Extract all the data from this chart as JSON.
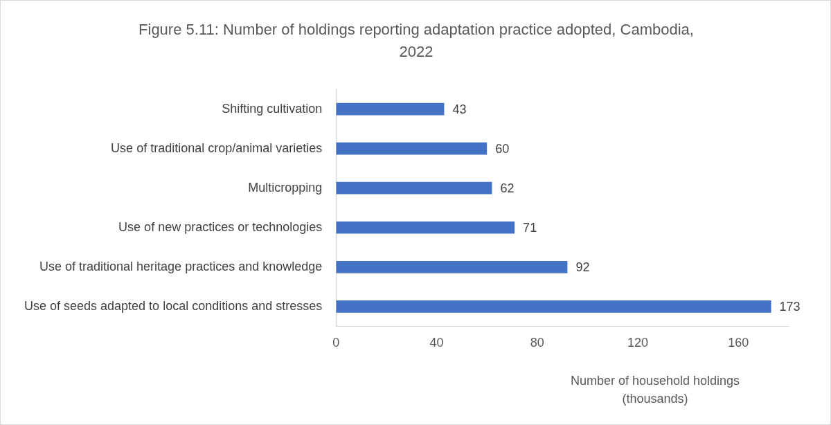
{
  "chart_data": {
    "type": "bar",
    "orientation": "horizontal",
    "title": "Figure 5.11: Number of holdings reporting adaptation practice adopted, Cambodia, 2022",
    "xlabel": "Number of household holdings (thousands)",
    "categories": [
      "Shifting cultivation",
      "Use of traditional crop/animal varieties",
      "Multicropping",
      "Use of new practices or technologies",
      "Use of traditional heritage practices and knowledge",
      "Use of seeds adapted to local conditions and stresses"
    ],
    "values": [
      43,
      60,
      62,
      71,
      92,
      173
    ],
    "color": "#4472c4",
    "xlim": [
      0,
      180
    ],
    "xticks": [
      0,
      40,
      80,
      120,
      160
    ],
    "data_labels": true,
    "grid": false,
    "legend": false
  }
}
